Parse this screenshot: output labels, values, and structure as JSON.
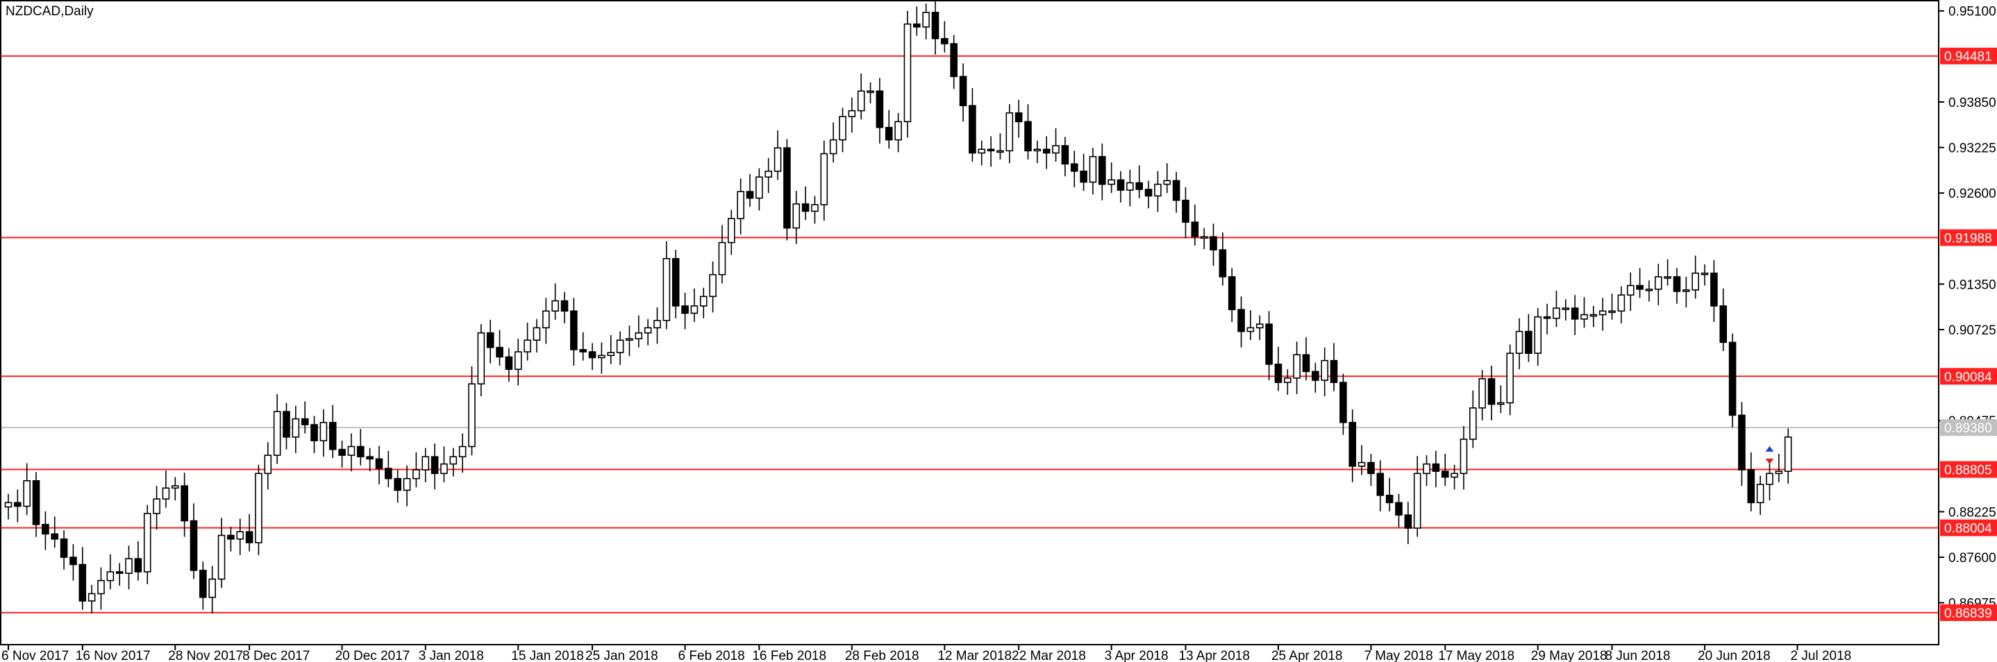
{
  "chart_data": {
    "type": "candlestick",
    "title": "NZDCAD,Daily",
    "ylim": [
      0.864,
      0.9525
    ],
    "y_ticks": [
      "0.95100",
      "0.93850",
      "0.93225",
      "0.92600",
      "0.91350",
      "0.90725",
      "0.89475",
      "0.88225",
      "0.87600",
      "0.86975"
    ],
    "current_price": "0.89380",
    "current_price_value": 0.8938,
    "levels": [
      {
        "label": "0.94481",
        "value": 0.94481
      },
      {
        "label": "0.91988",
        "value": 0.91988
      },
      {
        "label": "0.90084",
        "value": 0.90084
      },
      {
        "label": "0.88805",
        "value": 0.88805
      },
      {
        "label": "0.88004",
        "value": 0.88004
      },
      {
        "label": "0.86839",
        "value": 0.86839
      }
    ],
    "x_labels": [
      {
        "i": 0,
        "label": "6 Nov 2017"
      },
      {
        "i": 8,
        "label": "16 Nov 2017"
      },
      {
        "i": 18,
        "label": "28 Nov 2017"
      },
      {
        "i": 26,
        "label": "8 Dec 2017"
      },
      {
        "i": 36,
        "label": "20 Dec 2017"
      },
      {
        "i": 45,
        "label": "3 Jan 2018"
      },
      {
        "i": 55,
        "label": "15 Jan 2018"
      },
      {
        "i": 63,
        "label": "25 Jan 2018"
      },
      {
        "i": 73,
        "label": "6 Feb 2018"
      },
      {
        "i": 81,
        "label": "16 Feb 2018"
      },
      {
        "i": 91,
        "label": "28 Feb 2018"
      },
      {
        "i": 101,
        "label": "12 Mar 2018"
      },
      {
        "i": 109,
        "label": "22 Mar 2018"
      },
      {
        "i": 119,
        "label": "3 Apr 2018"
      },
      {
        "i": 127,
        "label": "13 Apr 2018"
      },
      {
        "i": 137,
        "label": "25 Apr 2018"
      },
      {
        "i": 147,
        "label": "7 May 2018"
      },
      {
        "i": 155,
        "label": "17 May 2018"
      },
      {
        "i": 165,
        "label": "29 May 2018"
      },
      {
        "i": 173,
        "label": "8 Jun 2018"
      },
      {
        "i": 183,
        "label": "20 Jun 2018"
      },
      {
        "i": 193,
        "label": "2 Jul 2018"
      }
    ],
    "close": [
      0.8835,
      0.883,
      0.8865,
      0.8805,
      0.8792,
      0.8785,
      0.876,
      0.875,
      0.87,
      0.871,
      0.8728,
      0.874,
      0.8738,
      0.8758,
      0.874,
      0.882,
      0.884,
      0.8855,
      0.8858,
      0.881,
      0.8742,
      0.8705,
      0.873,
      0.879,
      0.8785,
      0.8795,
      0.878,
      0.8875,
      0.89,
      0.896,
      0.8925,
      0.895,
      0.8942,
      0.892,
      0.8945,
      0.8908,
      0.89,
      0.8912,
      0.8898,
      0.8895,
      0.8882,
      0.8868,
      0.8852,
      0.8868,
      0.888,
      0.8898,
      0.8875,
      0.8888,
      0.8898,
      0.8912,
      0.8998,
      0.9068,
      0.9048,
      0.9035,
      0.9018,
      0.9042,
      0.9058,
      0.9075,
      0.9098,
      0.9112,
      0.9098,
      0.9045,
      0.9042,
      0.9034,
      0.9037,
      0.9041,
      0.9058,
      0.906,
      0.9068,
      0.9075,
      0.9085,
      0.917,
      0.9105,
      0.9095,
      0.9105,
      0.9118,
      0.9148,
      0.9192,
      0.9225,
      0.9262,
      0.9253,
      0.9282,
      0.929,
      0.9322,
      0.9212,
      0.9245,
      0.9235,
      0.9244,
      0.9314,
      0.9333,
      0.9365,
      0.9373,
      0.94,
      0.94,
      0.935,
      0.9333,
      0.9358,
      0.9492,
      0.9488,
      0.9508,
      0.9472,
      0.9465,
      0.942,
      0.938,
      0.9315,
      0.932,
      0.9318,
      0.9318,
      0.937,
      0.9358,
      0.9318,
      0.932,
      0.9315,
      0.9325,
      0.93,
      0.929,
      0.9275,
      0.931,
      0.9272,
      0.9278,
      0.9264,
      0.9274,
      0.9265,
      0.9256,
      0.9272,
      0.9277,
      0.925,
      0.922,
      0.92,
      0.92,
      0.9182,
      0.9145,
      0.91,
      0.907,
      0.9075,
      0.908,
      0.9025,
      0.9,
      0.9006,
      0.9038,
      0.9015,
      0.9003,
      0.903,
      0.9,
      0.8945,
      0.8885,
      0.889,
      0.8875,
      0.8845,
      0.8835,
      0.8818,
      0.88,
      0.8875,
      0.8888,
      0.8878,
      0.887,
      0.8875,
      0.8922,
      0.8965,
      0.9005,
      0.897,
      0.8972,
      0.904,
      0.907,
      0.904,
      0.909,
      0.9088,
      0.9102,
      0.9102,
      0.9087,
      0.9093,
      0.9093,
      0.9098,
      0.9098,
      0.912,
      0.9133,
      0.9128,
      0.9128,
      0.9145,
      0.9145,
      0.9125,
      0.9127,
      0.915,
      0.915,
      0.9105,
      0.9055,
      0.8955,
      0.888,
      0.8835,
      0.886,
      0.8875,
      0.8878,
      0.8925
    ]
  }
}
